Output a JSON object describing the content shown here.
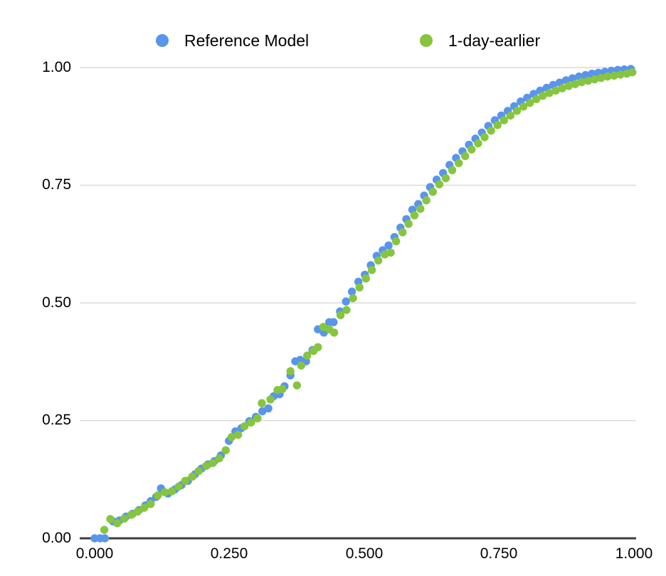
{
  "chart_data": {
    "type": "scatter",
    "title": "",
    "xlabel": "",
    "ylabel": "",
    "xlim": [
      0.0,
      1.0
    ],
    "ylim": [
      0.0,
      1.0
    ],
    "x_ticks": [
      "0.000",
      "0.250",
      "0.500",
      "0.750",
      "1.000"
    ],
    "y_ticks": [
      "0.00",
      "0.25",
      "0.50",
      "0.75",
      "1.00"
    ],
    "grid": "horizontal-only",
    "legend_position": "top",
    "background": "#ffffff",
    "axis_color": "#3e3e3e",
    "gridline_color": "#dadada",
    "series": [
      {
        "name": "Reference Model",
        "color": "#5895EB",
        "marker": "circle",
        "points": [
          [
            0.0,
            0.0
          ],
          [
            0.01,
            0.0
          ],
          [
            0.019,
            0.0
          ],
          [
            0.034,
            0.036
          ],
          [
            0.046,
            0.038
          ],
          [
            0.058,
            0.046
          ],
          [
            0.07,
            0.052
          ],
          [
            0.082,
            0.06
          ],
          [
            0.094,
            0.07
          ],
          [
            0.104,
            0.079
          ],
          [
            0.114,
            0.088
          ],
          [
            0.123,
            0.106
          ],
          [
            0.136,
            0.095
          ],
          [
            0.149,
            0.104
          ],
          [
            0.161,
            0.113
          ],
          [
            0.173,
            0.122
          ],
          [
            0.186,
            0.136
          ],
          [
            0.198,
            0.148
          ],
          [
            0.21,
            0.157
          ],
          [
            0.222,
            0.164
          ],
          [
            0.234,
            0.176
          ],
          [
            0.249,
            0.207
          ],
          [
            0.261,
            0.227
          ],
          [
            0.272,
            0.234
          ],
          [
            0.287,
            0.249
          ],
          [
            0.299,
            0.258
          ],
          [
            0.311,
            0.27
          ],
          [
            0.322,
            0.276
          ],
          [
            0.332,
            0.302
          ],
          [
            0.343,
            0.306
          ],
          [
            0.352,
            0.323
          ],
          [
            0.363,
            0.346
          ],
          [
            0.372,
            0.376
          ],
          [
            0.381,
            0.379
          ],
          [
            0.392,
            0.376
          ],
          [
            0.404,
            0.4
          ],
          [
            0.414,
            0.444
          ],
          [
            0.425,
            0.437
          ],
          [
            0.435,
            0.459
          ],
          [
            0.443,
            0.459
          ],
          [
            0.455,
            0.482
          ],
          [
            0.466,
            0.503
          ],
          [
            0.477,
            0.524
          ],
          [
            0.489,
            0.545
          ],
          [
            0.501,
            0.56
          ],
          [
            0.512,
            0.58
          ],
          [
            0.523,
            0.6
          ],
          [
            0.534,
            0.612
          ],
          [
            0.545,
            0.622
          ],
          [
            0.556,
            0.64
          ],
          [
            0.567,
            0.66
          ],
          [
            0.578,
            0.678
          ],
          [
            0.589,
            0.698
          ],
          [
            0.6,
            0.71
          ],
          [
            0.611,
            0.728
          ],
          [
            0.622,
            0.746
          ],
          [
            0.634,
            0.762
          ],
          [
            0.646,
            0.776
          ],
          [
            0.658,
            0.793
          ],
          [
            0.67,
            0.808
          ],
          [
            0.682,
            0.822
          ],
          [
            0.694,
            0.836
          ],
          [
            0.706,
            0.849
          ],
          [
            0.718,
            0.862
          ],
          [
            0.73,
            0.876
          ],
          [
            0.742,
            0.888
          ],
          [
            0.754,
            0.898
          ],
          [
            0.766,
            0.908
          ],
          [
            0.778,
            0.918
          ],
          [
            0.79,
            0.928
          ],
          [
            0.802,
            0.936
          ],
          [
            0.814,
            0.944
          ],
          [
            0.826,
            0.951
          ],
          [
            0.838,
            0.957
          ],
          [
            0.85,
            0.963
          ],
          [
            0.862,
            0.968
          ],
          [
            0.874,
            0.973
          ],
          [
            0.886,
            0.977
          ],
          [
            0.898,
            0.981
          ],
          [
            0.91,
            0.984
          ],
          [
            0.922,
            0.987
          ],
          [
            0.934,
            0.989
          ],
          [
            0.946,
            0.991
          ],
          [
            0.958,
            0.993
          ],
          [
            0.97,
            0.995
          ],
          [
            0.982,
            0.996
          ],
          [
            0.994,
            0.997
          ]
        ]
      },
      {
        "name": "1-day-earlier",
        "color": "#86C53F",
        "marker": "circle",
        "points": [
          [
            0.018,
            0.018
          ],
          [
            0.029,
            0.041
          ],
          [
            0.042,
            0.032
          ],
          [
            0.055,
            0.042
          ],
          [
            0.068,
            0.05
          ],
          [
            0.08,
            0.057
          ],
          [
            0.092,
            0.065
          ],
          [
            0.104,
            0.073
          ],
          [
            0.117,
            0.091
          ],
          [
            0.13,
            0.098
          ],
          [
            0.143,
            0.1
          ],
          [
            0.156,
            0.11
          ],
          [
            0.168,
            0.122
          ],
          [
            0.181,
            0.131
          ],
          [
            0.193,
            0.143
          ],
          [
            0.207,
            0.154
          ],
          [
            0.219,
            0.16
          ],
          [
            0.231,
            0.17
          ],
          [
            0.243,
            0.187
          ],
          [
            0.254,
            0.215
          ],
          [
            0.266,
            0.22
          ],
          [
            0.278,
            0.238
          ],
          [
            0.29,
            0.246
          ],
          [
            0.302,
            0.255
          ],
          [
            0.31,
            0.287
          ],
          [
            0.326,
            0.295
          ],
          [
            0.339,
            0.315
          ],
          [
            0.348,
            0.317
          ],
          [
            0.363,
            0.355
          ],
          [
            0.375,
            0.325
          ],
          [
            0.383,
            0.367
          ],
          [
            0.394,
            0.388
          ],
          [
            0.406,
            0.398
          ],
          [
            0.414,
            0.406
          ],
          [
            0.424,
            0.449
          ],
          [
            0.435,
            0.444
          ],
          [
            0.444,
            0.437
          ],
          [
            0.456,
            0.474
          ],
          [
            0.467,
            0.485
          ],
          [
            0.479,
            0.51
          ],
          [
            0.491,
            0.533
          ],
          [
            0.503,
            0.552
          ],
          [
            0.514,
            0.57
          ],
          [
            0.526,
            0.59
          ],
          [
            0.538,
            0.603
          ],
          [
            0.549,
            0.607
          ],
          [
            0.559,
            0.631
          ],
          [
            0.571,
            0.65
          ],
          [
            0.582,
            0.668
          ],
          [
            0.593,
            0.686
          ],
          [
            0.604,
            0.7
          ],
          [
            0.615,
            0.718
          ],
          [
            0.627,
            0.736
          ],
          [
            0.639,
            0.752
          ],
          [
            0.651,
            0.765
          ],
          [
            0.663,
            0.782
          ],
          [
            0.675,
            0.797
          ],
          [
            0.687,
            0.812
          ],
          [
            0.699,
            0.826
          ],
          [
            0.711,
            0.839
          ],
          [
            0.723,
            0.852
          ],
          [
            0.735,
            0.866
          ],
          [
            0.747,
            0.878
          ],
          [
            0.759,
            0.888
          ],
          [
            0.771,
            0.898
          ],
          [
            0.783,
            0.908
          ],
          [
            0.795,
            0.917
          ],
          [
            0.807,
            0.925
          ],
          [
            0.819,
            0.933
          ],
          [
            0.831,
            0.94
          ],
          [
            0.843,
            0.946
          ],
          [
            0.855,
            0.951
          ],
          [
            0.867,
            0.956
          ],
          [
            0.879,
            0.961
          ],
          [
            0.891,
            0.965
          ],
          [
            0.903,
            0.969
          ],
          [
            0.915,
            0.972
          ],
          [
            0.927,
            0.975
          ],
          [
            0.939,
            0.978
          ],
          [
            0.951,
            0.981
          ],
          [
            0.963,
            0.983
          ],
          [
            0.975,
            0.985
          ],
          [
            0.987,
            0.987
          ],
          [
            0.997,
            0.99
          ]
        ]
      }
    ]
  }
}
